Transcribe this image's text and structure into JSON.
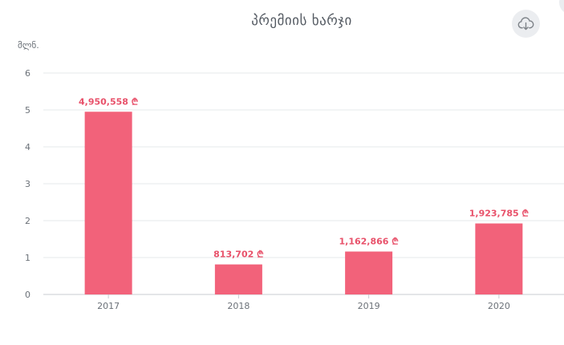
{
  "chart_data": {
    "type": "bar",
    "title": "პრემიის ხარჯი",
    "ylabel": "მლნ.",
    "categories": [
      "2017",
      "2018",
      "2019",
      "2020"
    ],
    "values": [
      4.950558,
      0.813702,
      1.162866,
      1.923785
    ],
    "data_labels": [
      "4,950,558 ₾",
      "813,702 ₾",
      "1,162,866 ₾",
      "1,923,785 ₾"
    ],
    "ylim": [
      0,
      6
    ],
    "yticks": [
      "0",
      "1",
      "2",
      "3",
      "4",
      "5",
      "6"
    ],
    "grid": true,
    "bar_color": "#f2627a",
    "label_color": "#e8516a"
  },
  "toolbar": {
    "download_icon": "cloud-download-icon"
  }
}
